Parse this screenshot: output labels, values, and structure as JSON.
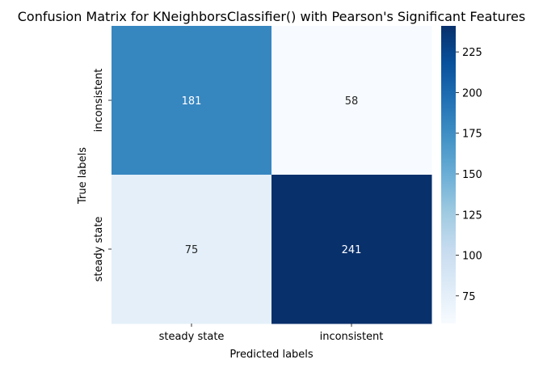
{
  "chart_data": {
    "type": "heatmap",
    "title": "Confusion Matrix for KNeighborsClassifier() with Pearson's Significant Features",
    "xlabel": "Predicted labels",
    "ylabel": "True labels",
    "x_categories": [
      "steady state",
      "inconsistent"
    ],
    "y_categories": [
      "inconsistent",
      "steady state"
    ],
    "values": [
      [
        181,
        58
      ],
      [
        75,
        241
      ]
    ],
    "colormap": "Blues",
    "colorbar": {
      "range": [
        58,
        241
      ],
      "ticks": [
        75,
        100,
        125,
        150,
        175,
        200,
        225
      ]
    },
    "grid": false,
    "legend": "colorbar-right"
  }
}
